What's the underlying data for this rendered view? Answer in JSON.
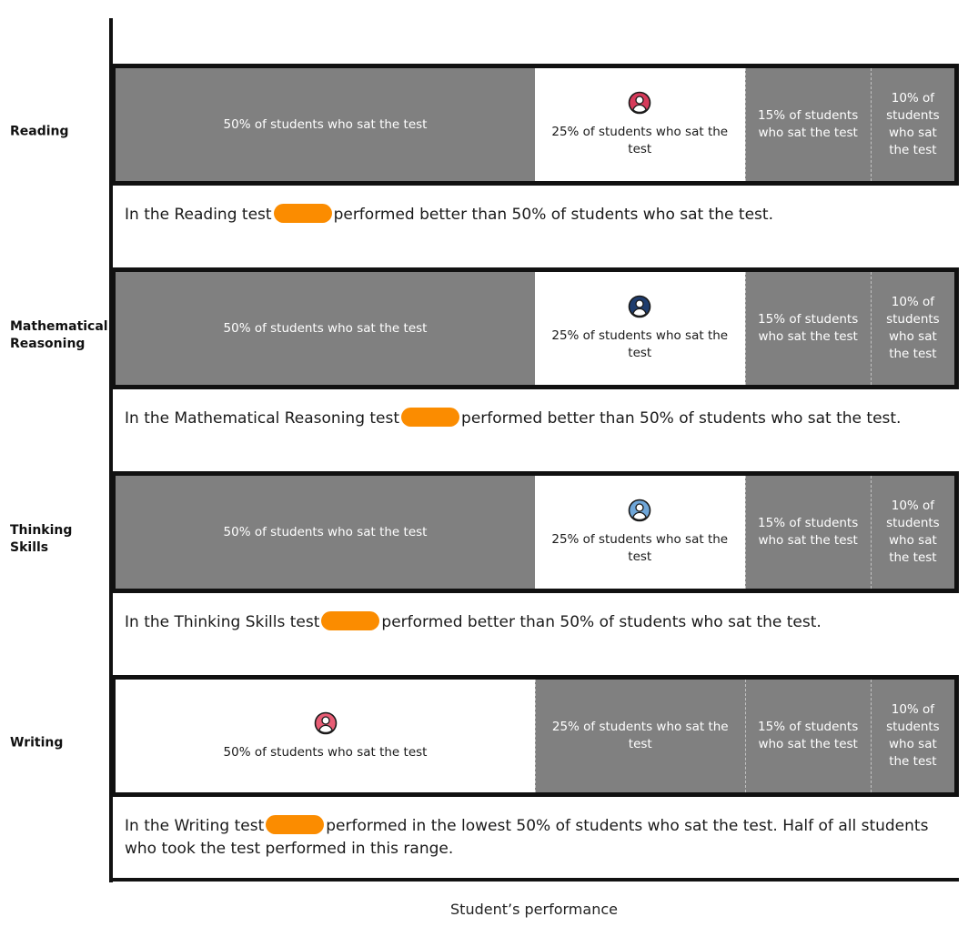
{
  "chart_data": {
    "type": "table",
    "xlabel": "Student’s performance",
    "rows": [
      {
        "label": "Reading",
        "icon": "student-icon",
        "icon_color": "#d63a5a",
        "segments": [
          {
            "percent": 50,
            "label": "50% of students who sat the test",
            "highlighted": false
          },
          {
            "percent": 25,
            "label": "25% of students who sat the test",
            "highlighted": true
          },
          {
            "percent": 15,
            "label": "15% of students who sat the test",
            "highlighted": false
          },
          {
            "percent": 10,
            "label": "10% of students who sat the test",
            "highlighted": false
          }
        ],
        "caption_before": "In the Reading test",
        "caption_after": "performed better than 50% of students who sat the test."
      },
      {
        "label": "Mathematical Reasoning",
        "icon": "student-icon",
        "icon_color": "#1f3d6e",
        "segments": [
          {
            "percent": 50,
            "label": "50% of students who sat the test",
            "highlighted": false
          },
          {
            "percent": 25,
            "label": "25% of students who sat the test",
            "highlighted": true
          },
          {
            "percent": 15,
            "label": "15% of students who sat the test",
            "highlighted": false
          },
          {
            "percent": 10,
            "label": "10% of students who sat the test",
            "highlighted": false
          }
        ],
        "caption_before": "In the Mathematical Reasoning test",
        "caption_after": "performed better than 50% of students who sat the test."
      },
      {
        "label": "Thinking Skills",
        "icon": "student-icon",
        "icon_color": "#6fa6d8",
        "segments": [
          {
            "percent": 50,
            "label": "50% of students who sat the test",
            "highlighted": false
          },
          {
            "percent": 25,
            "label": "25% of students who sat the test",
            "highlighted": true
          },
          {
            "percent": 15,
            "label": "15% of students who sat the test",
            "highlighted": false
          },
          {
            "percent": 10,
            "label": "10% of students who sat the test",
            "highlighted": false
          }
        ],
        "caption_before": "In the Thinking Skills test",
        "caption_after": "performed better than 50% of students who sat the test."
      },
      {
        "label": "Writing",
        "icon": "student-icon",
        "icon_color": "#e85d75",
        "segments": [
          {
            "percent": 50,
            "label": "50% of students who sat the test",
            "highlighted": true
          },
          {
            "percent": 25,
            "label": "25% of students who sat the test",
            "highlighted": false
          },
          {
            "percent": 15,
            "label": "15% of students who sat the test",
            "highlighted": false
          },
          {
            "percent": 10,
            "label": "10% of students who sat the test",
            "highlighted": false
          }
        ],
        "caption_before": "In the Writing test",
        "caption_after": "performed in the lowest 50% of students who sat the test. Half of all students who took the test performed in this range."
      }
    ]
  },
  "colors": {
    "band_bg": "#808080",
    "highlight_bg": "#ffffff",
    "redaction": "#fb8c00",
    "axis": "#111111"
  }
}
